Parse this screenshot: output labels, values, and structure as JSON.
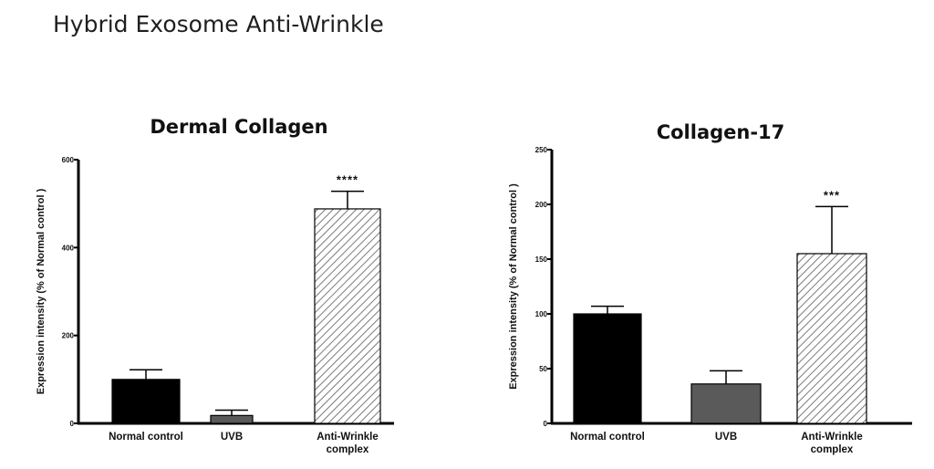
{
  "page_title": "Hybrid Exosome Anti-Wrinkle",
  "chart_data": [
    {
      "type": "bar",
      "title": "Dermal Collagen",
      "ylabel": "Expression intensity (% of Normal control )",
      "xlabel": "",
      "categories": [
        [
          "Normal control"
        ],
        [
          "UVB"
        ],
        [
          "Anti-Wrinkle",
          "complex"
        ]
      ],
      "values": [
        100,
        18,
        488
      ],
      "errors": [
        22,
        12,
        40
      ],
      "significance": [
        "",
        "",
        "****"
      ],
      "bar_styles": [
        "solid-black",
        "solid-gray",
        "hatched"
      ],
      "ylim": [
        0,
        600
      ],
      "yticks": [
        0,
        200,
        400,
        600
      ],
      "grid": false
    },
    {
      "type": "bar",
      "title": "Collagen-17",
      "ylabel": "Expression intensity (% of Normal control )",
      "xlabel": "",
      "categories": [
        [
          "Normal control"
        ],
        [
          "UVB"
        ],
        [
          "Anti-Wrinkle",
          "complex"
        ]
      ],
      "values": [
        100,
        36,
        155
      ],
      "errors": [
        7,
        12,
        43
      ],
      "significance": [
        "",
        "",
        "***"
      ],
      "bar_styles": [
        "solid-black",
        "solid-gray",
        "hatched"
      ],
      "ylim": [
        0,
        250
      ],
      "yticks": [
        0,
        50,
        100,
        150,
        200,
        250
      ],
      "grid": false
    }
  ],
  "colors": {
    "black_bar": "#000000",
    "gray_bar": "#5a5a5a",
    "hatch": "#777777",
    "axis": "#000000"
  }
}
